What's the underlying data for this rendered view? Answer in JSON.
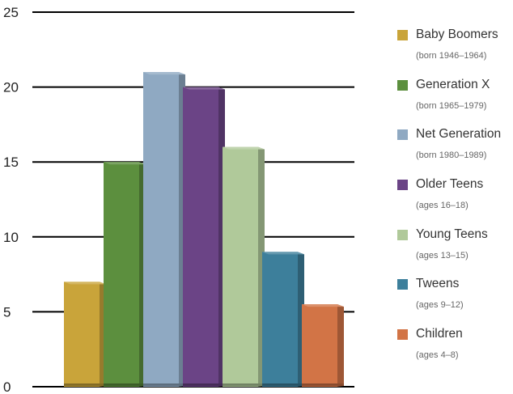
{
  "chart_data": {
    "type": "bar",
    "title": "",
    "xlabel": "",
    "ylabel": "",
    "ylim": [
      0,
      25
    ],
    "yticks": [
      "0",
      "5",
      "10",
      "15",
      "20",
      "25"
    ],
    "grid": true,
    "legend_position": "right",
    "series": [
      {
        "name": "Baby Boomers",
        "note": "(born 1946–1964)",
        "value": 7,
        "color": "#c9a43a"
      },
      {
        "name": "Generation X",
        "note": "(born 1965–1979)",
        "value": 15,
        "color": "#5c8f3e"
      },
      {
        "name": "Net Generation",
        "note": "(born 1980–1989)",
        "value": 21,
        "color": "#8fa9c2"
      },
      {
        "name": "Older Teens",
        "note": "(ages 16–18)",
        "value": 20,
        "color": "#6b4486"
      },
      {
        "name": "Young Teens",
        "note": "(ages 13–15)",
        "value": 16,
        "color": "#b0c99a"
      },
      {
        "name": "Tweens",
        "note": "(ages 9–12)",
        "value": 9,
        "color": "#3d7f9b"
      },
      {
        "name": "Children",
        "note": "(ages 4–8)",
        "value": 5.5,
        "color": "#d27446"
      }
    ]
  }
}
